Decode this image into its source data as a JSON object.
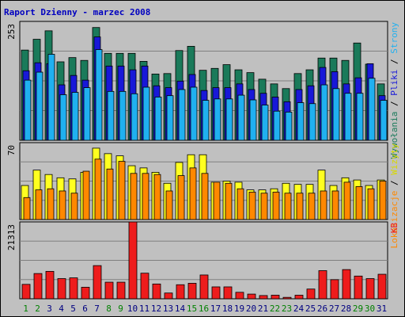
{
  "colors": {
    "background": "#c0c0c0",
    "plot_bg": "#c0c0c0",
    "title": "#0000c0",
    "hits": "#1a7a5a",
    "files": "#1818d8",
    "pages": "#20b0f0",
    "visits": "#ffff20",
    "sites": "#ff8800",
    "kbytes": "#ee1c1c",
    "sep": "#000000",
    "day_weekday": "#000080",
    "day_weekend": "#008000"
  },
  "chart_data": {
    "type": "bar",
    "title": "Raport Dzienny - marzec 2008",
    "categories": [
      "1",
      "2",
      "3",
      "4",
      "5",
      "6",
      "7",
      "8",
      "9",
      "10",
      "11",
      "12",
      "13",
      "14",
      "15",
      "16",
      "17",
      "18",
      "19",
      "20",
      "21",
      "22",
      "23",
      "24",
      "25",
      "26",
      "27",
      "28",
      "29",
      "30",
      "31"
    ],
    "weekend_days": [
      "1",
      "2",
      "8",
      "9",
      "15",
      "16",
      "22",
      "23",
      "29",
      "30"
    ],
    "panels": [
      {
        "id": "top",
        "ymax": 253,
        "ymax_label": "253",
        "legend": [
          "Wywołania",
          "Pliki",
          "Strony"
        ],
        "legend_separator": "/",
        "grid": true,
        "series": [
          {
            "name": "Wywołania",
            "values": [
              192,
              215,
              233,
              167,
              176,
              170,
              240,
              185,
              185,
              185,
              168,
              141,
              142,
              191,
              200,
              149,
              153,
              161,
              150,
              144,
              130,
              120,
              110,
              142,
              150,
              175,
              175,
              170,
              207,
              162,
              120
            ]
          },
          {
            "name": "Pliki",
            "values": [
              148,
              165,
              163,
              118,
              138,
              128,
              220,
              158,
              158,
              150,
              158,
              116,
              112,
              126,
              140,
              106,
              112,
              112,
              120,
              108,
              100,
              92,
              82,
              108,
              116,
              155,
              146,
              120,
              133,
              163,
              95
            ]
          },
          {
            "name": "Strony",
            "values": [
              128,
              145,
              183,
              97,
              102,
              112,
              193,
              104,
              104,
              99,
              113,
              92,
              95,
              108,
              113,
              85,
              88,
              88,
              96,
              86,
              75,
              62,
              60,
              80,
              78,
              118,
              110,
              100,
              100,
              132,
              85
            ]
          }
        ]
      },
      {
        "id": "middle",
        "ymax": 70,
        "ymax_label": "70",
        "legend": [
          "Lokalizacje",
          "Wizyty"
        ],
        "legend_separator": "/",
        "grid": true,
        "series": [
          {
            "name": "Wizyty",
            "values": [
              31,
              45,
              41,
              38,
              37,
              43,
              65,
              60,
              58,
              49,
              47,
              43,
              33,
              52,
              59,
              59,
              34,
              35,
              34,
              27,
              27,
              28,
              33,
              32,
              32,
              45,
              31,
              38,
              36,
              31,
              36
            ]
          },
          {
            "name": "Lokalizacje",
            "values": [
              20,
              27,
              28,
              26,
              24,
              44,
              55,
              46,
              53,
              42,
              42,
              41,
              26,
              40,
              47,
              42,
              34,
              33,
              28,
              25,
              24,
              25,
              24,
              24,
              24,
              26,
              26,
              34,
              30,
              28,
              35
            ]
          }
        ]
      },
      {
        "id": "bottom",
        "ymax": 21313,
        "ymax_label": "21313",
        "legend": [
          "KB"
        ],
        "legend_separator": "",
        "grid": true,
        "series": [
          {
            "name": "KB",
            "values": [
              4000,
              7000,
              7600,
              5600,
              5800,
              3200,
              9200,
              4600,
              4600,
              21313,
              7100,
              4100,
              1600,
              3900,
              4300,
              6600,
              3300,
              3300,
              1800,
              1300,
              900,
              1000,
              400,
              1000,
              2700,
              7800,
              5300,
              8100,
              6300,
              5600,
              6800
            ]
          }
        ]
      }
    ]
  }
}
